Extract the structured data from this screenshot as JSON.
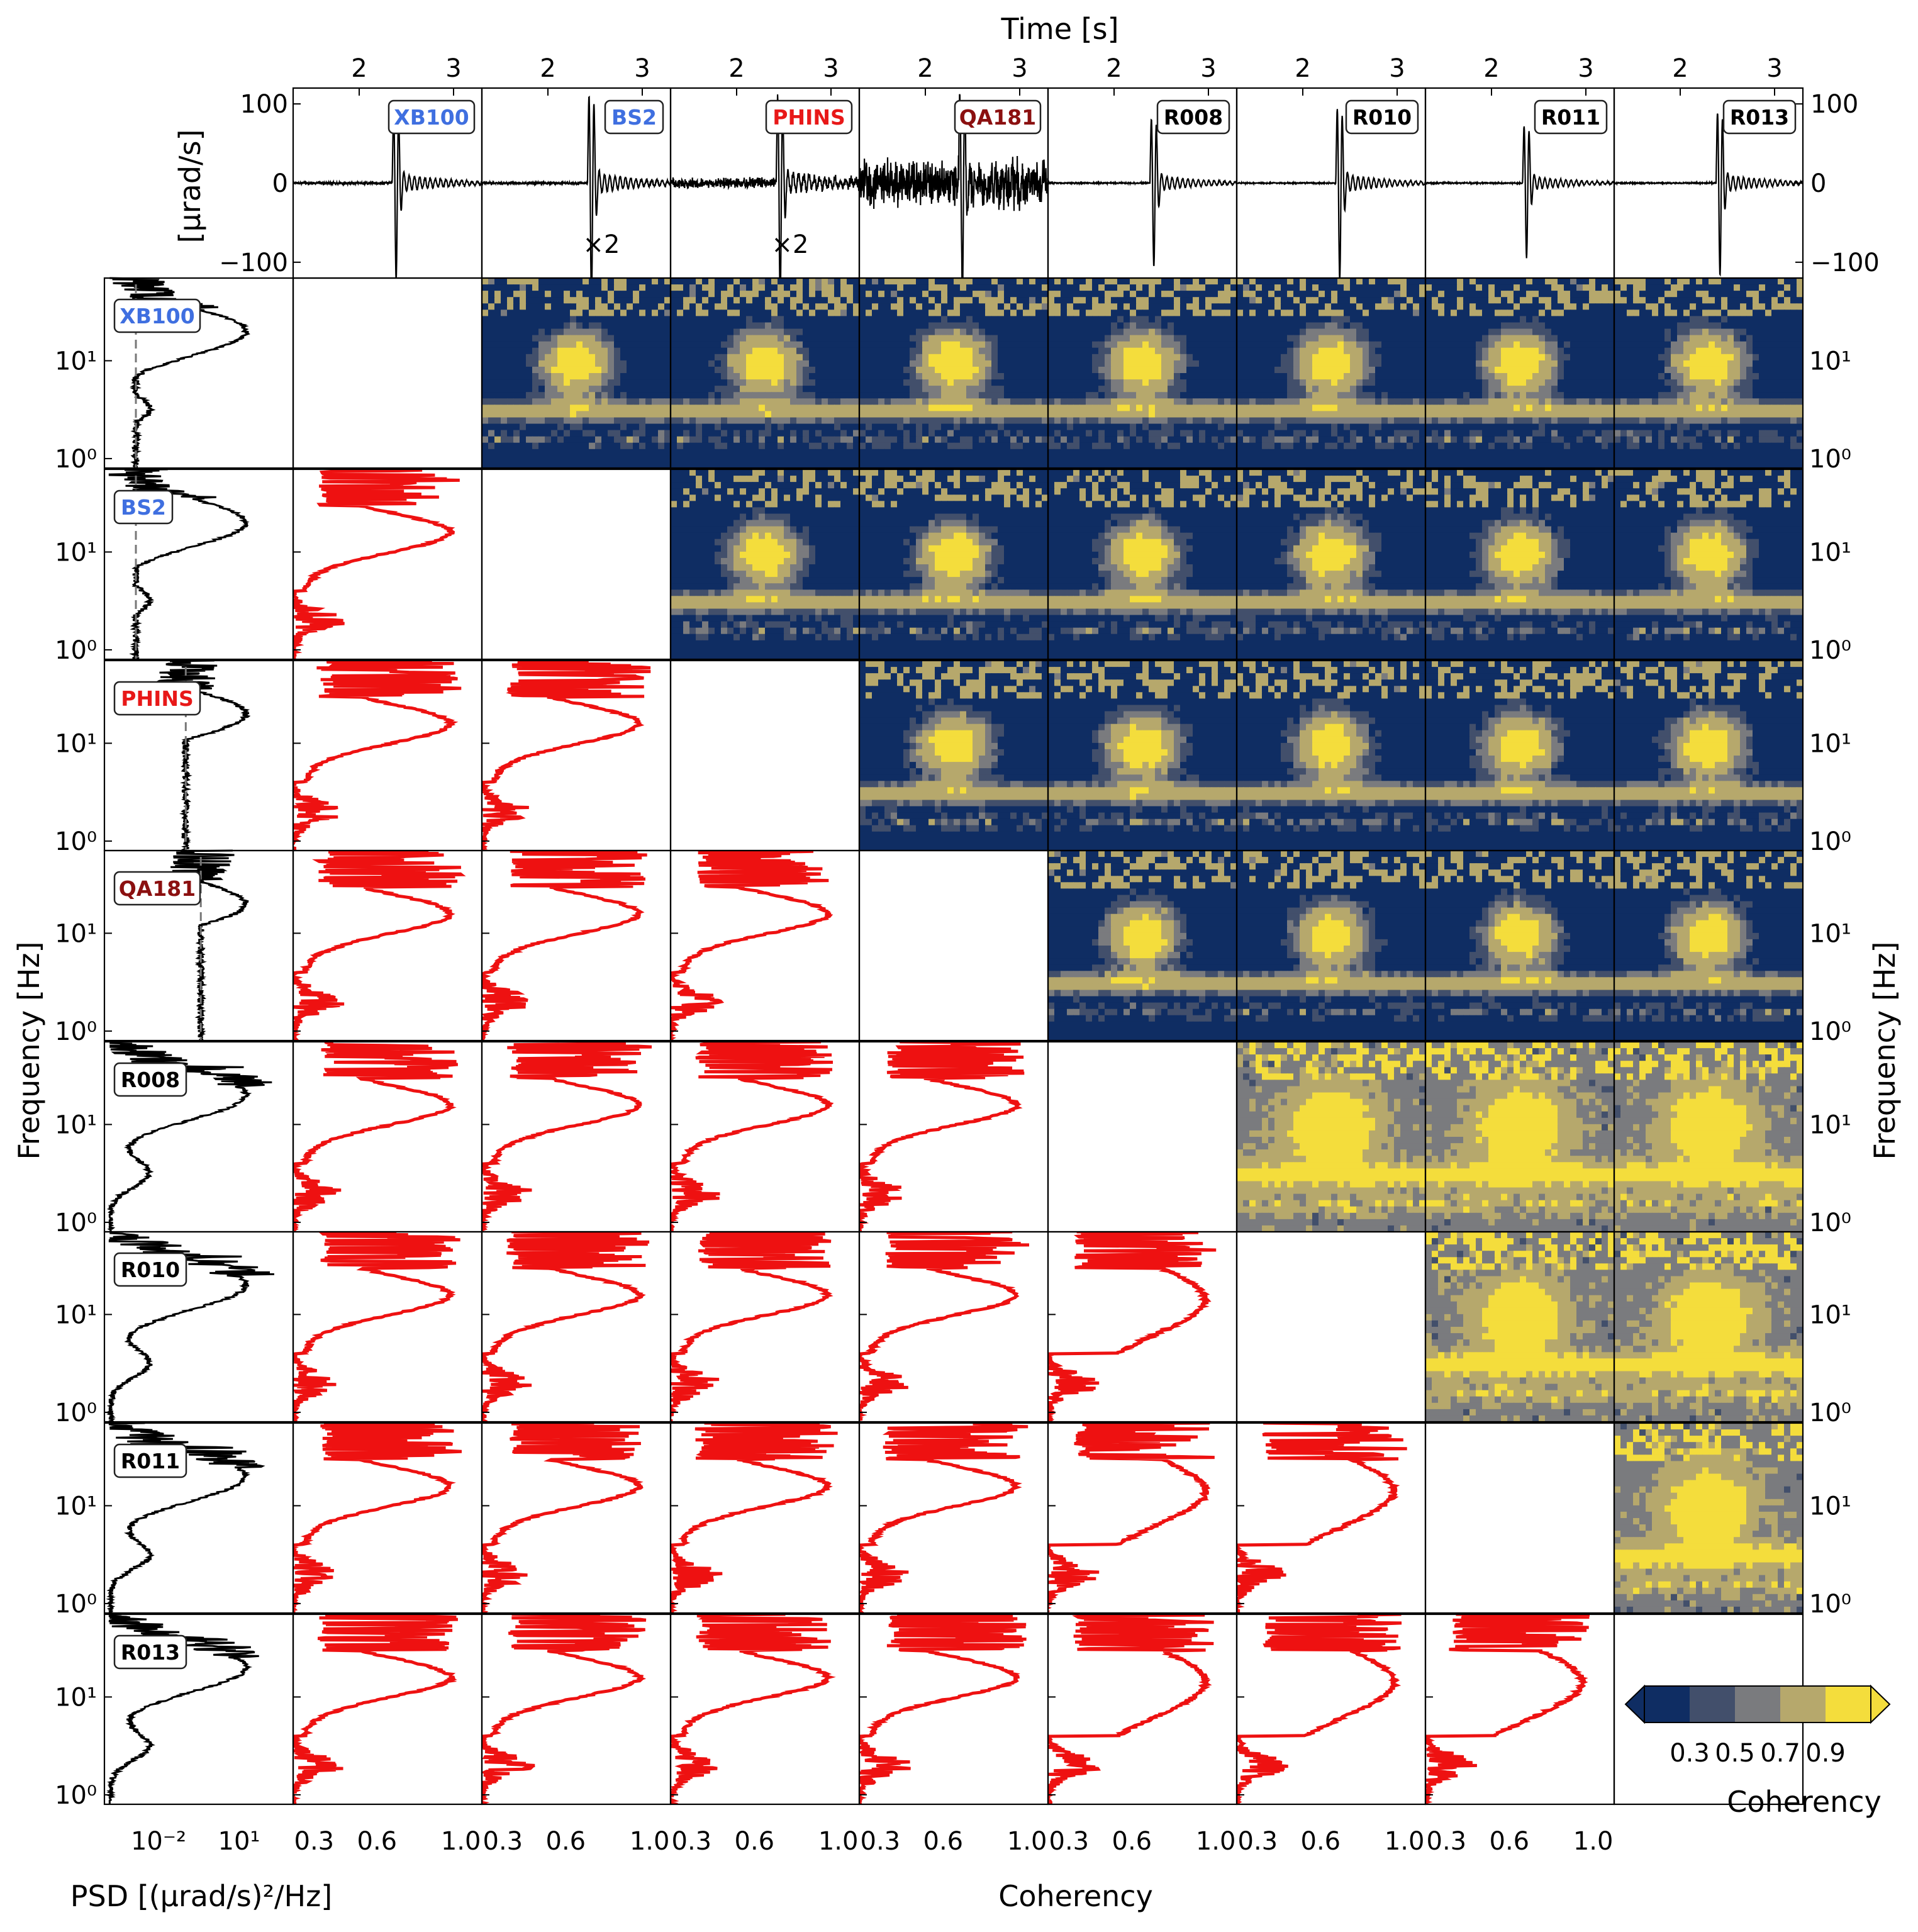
{
  "figure": {
    "top_xlabel": "Time [s]",
    "bottom_xlabel_left": "PSD [(μrad/s)²/Hz]",
    "bottom_xlabel_right": "Coherency",
    "ylabel_left": "Frequency [Hz]",
    "ylabel_right": "Frequency [Hz]",
    "waveform_ylabel": "[μrad/s]"
  },
  "stations": [
    {
      "name": "XB100",
      "color": "#3f6fe0",
      "multiplier": ""
    },
    {
      "name": "BS2",
      "color": "#3f6fe0",
      "multiplier": "×2"
    },
    {
      "name": "PHINS",
      "color": "#e81818",
      "multiplier": "×2"
    },
    {
      "name": "QA181",
      "color": "#8b1010",
      "multiplier": ""
    },
    {
      "name": "R008",
      "color": "#000000",
      "multiplier": ""
    },
    {
      "name": "R010",
      "color": "#000000",
      "multiplier": ""
    },
    {
      "name": "R011",
      "color": "#000000",
      "multiplier": ""
    },
    {
      "name": "R013",
      "color": "#000000",
      "multiplier": ""
    }
  ],
  "colorbar": {
    "label": "Coherency",
    "tick_labels": [
      "0.3",
      "0.5",
      "0.7",
      "0.9"
    ],
    "levels": [
      0.3,
      0.4,
      0.5,
      0.6,
      0.7,
      0.8,
      0.9
    ],
    "colors": [
      "#0f2d63",
      "#424f6b",
      "#7a7b7e",
      "#b6a86c",
      "#f4dd3c"
    ]
  },
  "chart_data": {
    "type": "matrix",
    "waveforms": {
      "type": "line",
      "xlabel": "Time [s]",
      "ylabel": "[μrad/s]",
      "xlim": [
        1.3,
        3.3
      ],
      "ylim": [
        -120,
        120
      ],
      "x_ticks": [
        2,
        3
      ],
      "y_ticks": [
        -100,
        0,
        100
      ],
      "y_tick_labels": [
        "−100",
        "0",
        "100"
      ],
      "onset_s": [
        2.35,
        2.42,
        2.42,
        2.35,
        2.38,
        2.35,
        2.33,
        2.38
      ],
      "peak_amplitude": [
        110,
        130,
        130,
        120,
        95,
        110,
        85,
        105
      ],
      "noise_level": [
        2,
        2,
        8,
        35,
        1,
        1,
        1,
        1
      ]
    },
    "psd": {
      "type": "line",
      "xlabel": "PSD [(μrad/s)²/Hz]",
      "ylabel": "Frequency [Hz]",
      "xscale": "log",
      "yscale": "log",
      "x_tick_labels": [
        "10⁻²",
        "10¹"
      ],
      "y_tick_labels": [
        "10⁰",
        "10¹"
      ],
      "noise_floor": [
        0.001,
        0.001,
        0.08,
        0.3,
        null,
        null,
        null,
        null
      ],
      "peak_frequency_hz": 20
    },
    "coherency_spectra": {
      "type": "line",
      "xlabel": "Coherency",
      "xlim": [
        0.2,
        1.1
      ],
      "x_tick_labels": [
        "0.3",
        "0.6",
        "1.0"
      ],
      "y_tick_labels": [
        "10⁰",
        "10¹"
      ]
    },
    "wavelet_coherency": {
      "type": "heatmap",
      "xlabel": "Time [s]",
      "ylabel": "Frequency [Hz]",
      "color_range": [
        0.2,
        1.0
      ]
    }
  }
}
